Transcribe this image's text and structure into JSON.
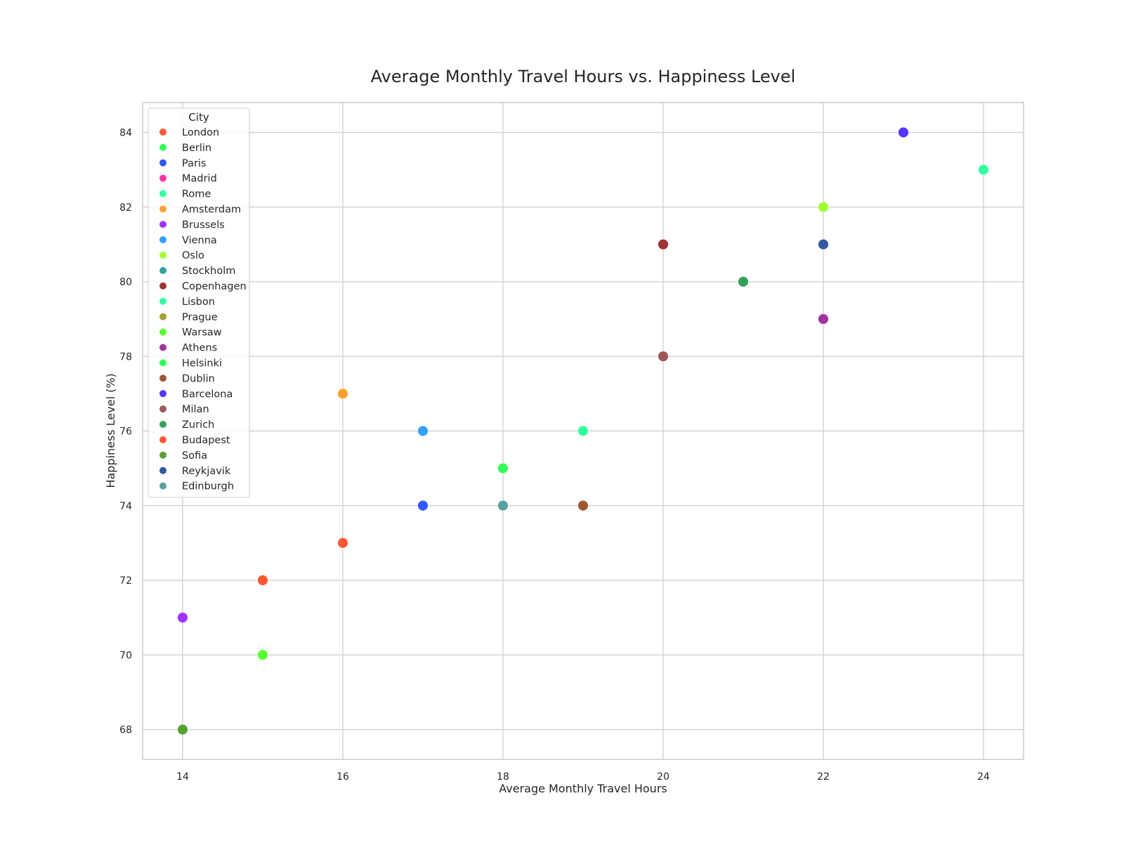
{
  "chart_data": {
    "type": "scatter",
    "title": "Average Monthly Travel Hours vs. Happiness Level",
    "xlabel": "Average Monthly Travel Hours",
    "ylabel": "Happiness Level (%)",
    "xlim": [
      13.5,
      24.5
    ],
    "ylim": [
      67.2,
      84.8
    ],
    "xticks": [
      14,
      16,
      18,
      20,
      22,
      24
    ],
    "yticks": [
      68,
      70,
      72,
      74,
      76,
      78,
      80,
      82,
      84
    ],
    "grid": true,
    "legend": {
      "title": "City",
      "placement": "top-left"
    },
    "series": [
      {
        "name": "London",
        "color": "#ff5733",
        "x": 15,
        "y": 72
      },
      {
        "name": "Berlin",
        "color": "#33ff57",
        "x": 18,
        "y": 75
      },
      {
        "name": "Paris",
        "color": "#3357ff",
        "x": 17,
        "y": 74
      },
      {
        "name": "Madrid",
        "color": "#ff33a1",
        "x": null,
        "y": null
      },
      {
        "name": "Rome",
        "color": "#33ffa1",
        "x": 19,
        "y": 76
      },
      {
        "name": "Amsterdam",
        "color": "#ffa133",
        "x": 16,
        "y": 77
      },
      {
        "name": "Brussels",
        "color": "#a133ff",
        "x": 14,
        "y": 71
      },
      {
        "name": "Vienna",
        "color": "#33a1ff",
        "x": 17,
        "y": 76
      },
      {
        "name": "Oslo",
        "color": "#a1ff33",
        "x": 22,
        "y": 82
      },
      {
        "name": "Stockholm",
        "color": "#33a1a1",
        "x": null,
        "y": null
      },
      {
        "name": "Copenhagen",
        "color": "#a13333",
        "x": 20,
        "y": 81
      },
      {
        "name": "Lisbon",
        "color": "#33ffa1",
        "x": 24,
        "y": 83
      },
      {
        "name": "Prague",
        "color": "#a1a133",
        "x": null,
        "y": null
      },
      {
        "name": "Warsaw",
        "color": "#57ff33",
        "x": 15,
        "y": 70
      },
      {
        "name": "Athens",
        "color": "#a133a1",
        "x": 22,
        "y": 79
      },
      {
        "name": "Helsinki",
        "color": "#33ff57",
        "x": null,
        "y": null
      },
      {
        "name": "Dublin",
        "color": "#a15733",
        "x": 19,
        "y": 74
      },
      {
        "name": "Barcelona",
        "color": "#5733ff",
        "x": 23,
        "y": 84
      },
      {
        "name": "Milan",
        "color": "#a15757",
        "x": 20,
        "y": 78
      },
      {
        "name": "Zurich",
        "color": "#33a157",
        "x": 21,
        "y": 80
      },
      {
        "name": "Budapest",
        "color": "#ff5733",
        "x": 16,
        "y": 73
      },
      {
        "name": "Sofia",
        "color": "#57a133",
        "x": 14,
        "y": 68
      },
      {
        "name": "Reykjavik",
        "color": "#3357a1",
        "x": 22,
        "y": 81
      },
      {
        "name": "Edinburgh",
        "color": "#57a1a1",
        "x": 18,
        "y": 74
      }
    ]
  }
}
